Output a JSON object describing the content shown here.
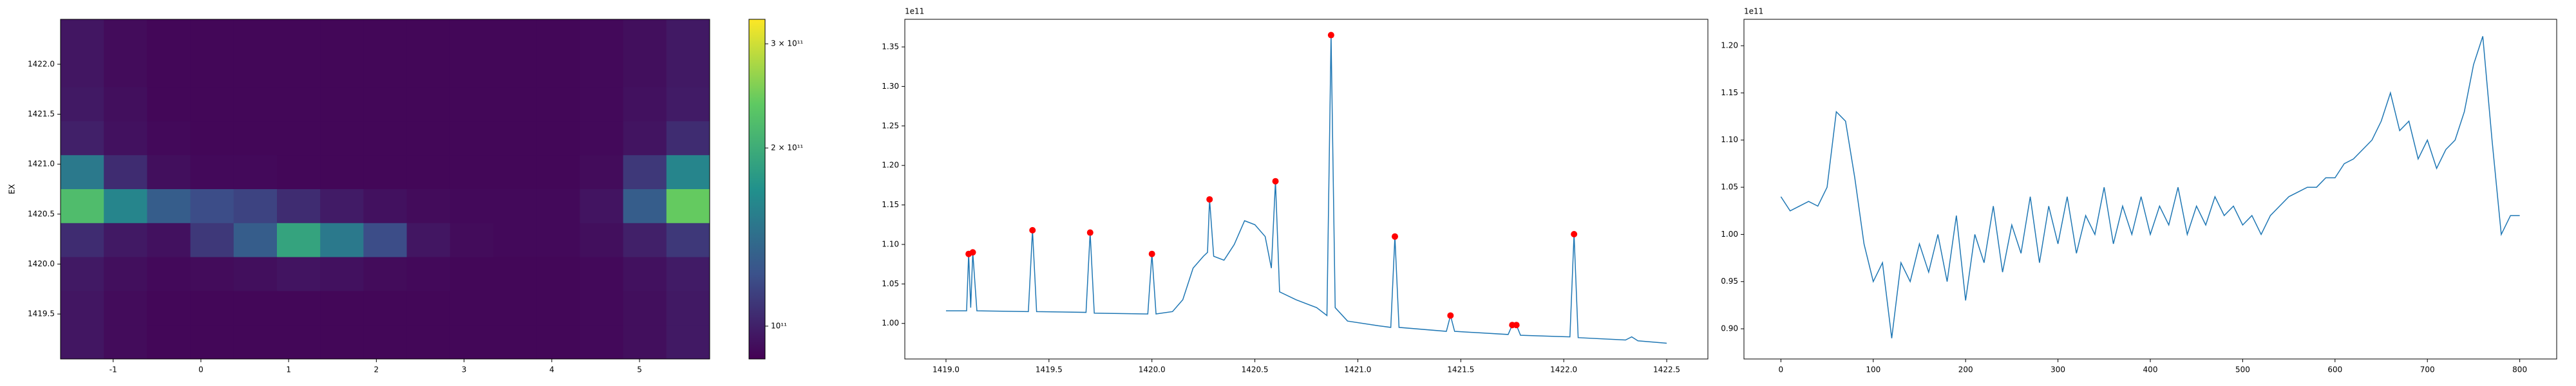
{
  "chart_data": [
    {
      "type": "heatmap",
      "ylabel": "EX",
      "xlim": [
        -1.6,
        5.8
      ],
      "ylim": [
        1419.05,
        1422.45
      ],
      "xticks": [
        -1,
        0,
        1,
        2,
        3,
        4,
        5
      ],
      "yticks": [
        1419.5,
        {
          "value": 1420.0,
          "label": "1420.0"
        },
        1420.5,
        {
          "value": 1421.0,
          "label": "1421.0"
        },
        1421.5,
        {
          "value": 1422.0,
          "label": "1422.0"
        }
      ],
      "colormap": "viridis",
      "color_scale": "log",
      "clim": [
        88000000000,
        330000000000
      ],
      "colorbar_ticks": [
        {
          "value": 100000000000,
          "label": "10¹¹"
        },
        {
          "value": 200000000000,
          "label": "2 × 10¹¹"
        },
        {
          "value": 300000000000,
          "label": "3 × 10¹¹"
        }
      ],
      "z": [
        [
          96000000000,
          92000000000,
          90000000000,
          90000000000,
          90000000000,
          90000000000,
          90000000000,
          90000000000,
          90000000000,
          90000000000,
          90000000000,
          90000000000,
          91000000000,
          93000000000,
          97000000000
        ],
        [
          96000000000,
          92000000000,
          90000000000,
          90000000000,
          90000000000,
          90000000000,
          90000000000,
          90000000000,
          90000000000,
          90000000000,
          90000000000,
          90000000000,
          91000000000,
          93000000000,
          97000000000
        ],
        [
          97000000000,
          93000000000,
          90000000000,
          90000000000,
          90000000000,
          90000000000,
          90000000000,
          90000000000,
          90000000000,
          90000000000,
          90000000000,
          90000000000,
          91000000000,
          94000000000,
          98000000000
        ],
        [
          100000000000,
          94000000000,
          91000000000,
          90000000000,
          90000000000,
          90000000000,
          90000000000,
          90000000000,
          90000000000,
          90000000000,
          90000000000,
          90000000000,
          91000000000,
          95000000000,
          105000000000
        ],
        [
          150000000000,
          105000000000,
          93000000000,
          91000000000,
          91000000000,
          90000000000,
          90000000000,
          90000000000,
          90000000000,
          90000000000,
          90000000000,
          90000000000,
          92000000000,
          110000000000,
          160000000000
        ],
        [
          220000000000,
          160000000000,
          130000000000,
          120000000000,
          115000000000,
          105000000000,
          98000000000,
          94000000000,
          92000000000,
          91000000000,
          91000000000,
          91000000000,
          95000000000,
          130000000000,
          240000000000
        ],
        [
          105000000000,
          97000000000,
          94000000000,
          110000000000,
          130000000000,
          190000000000,
          150000000000,
          120000000000,
          96000000000,
          92000000000,
          91000000000,
          91000000000,
          93000000000,
          100000000000,
          110000000000
        ],
        [
          97000000000,
          93000000000,
          91000000000,
          92000000000,
          93000000000,
          95000000000,
          94000000000,
          92000000000,
          91000000000,
          90000000000,
          90000000000,
          90000000000,
          91000000000,
          94000000000,
          98000000000
        ],
        [
          96000000000,
          92000000000,
          90000000000,
          90000000000,
          90000000000,
          90000000000,
          90000000000,
          90000000000,
          90000000000,
          90000000000,
          90000000000,
          90000000000,
          91000000000,
          93000000000,
          97000000000
        ],
        [
          96000000000,
          92000000000,
          90000000000,
          90000000000,
          90000000000,
          90000000000,
          90000000000,
          90000000000,
          90000000000,
          90000000000,
          90000000000,
          90000000000,
          91000000000,
          93000000000,
          97000000000
        ]
      ]
    },
    {
      "type": "line",
      "y_offset_label": "1e11",
      "xlim": [
        1418.8,
        1422.7
      ],
      "ylim": [
        0.955,
        1.385
      ],
      "xticks": [
        {
          "value": 1419.0,
          "label": "1419.0"
        },
        1419.5,
        {
          "value": 1420.0,
          "label": "1420.0"
        },
        1420.5,
        {
          "value": 1421.0,
          "label": "1421.0"
        },
        1421.5,
        {
          "value": 1422.0,
          "label": "1422.0"
        },
        1422.5
      ],
      "yticks": [
        {
          "value": 1.0,
          "label": "1.00"
        },
        1.05,
        {
          "value": 1.1,
          "label": "1.10"
        },
        1.15,
        {
          "value": 1.2,
          "label": "1.20"
        },
        1.25,
        {
          "value": 1.3,
          "label": "1.30"
        },
        1.35
      ],
      "series": [
        {
          "mode": "line",
          "color": "#1f77b4",
          "x": [
            1419.0,
            1419.1,
            1419.11,
            1419.12,
            1419.13,
            1419.15,
            1419.4,
            1419.42,
            1419.44,
            1419.68,
            1419.7,
            1419.72,
            1419.98,
            1420.0,
            1420.02,
            1420.1,
            1420.15,
            1420.2,
            1420.25,
            1420.27,
            1420.28,
            1420.3,
            1420.35,
            1420.4,
            1420.45,
            1420.5,
            1420.55,
            1420.58,
            1420.6,
            1420.62,
            1420.7,
            1420.8,
            1420.85,
            1420.87,
            1420.89,
            1420.95,
            1421.1,
            1421.16,
            1421.18,
            1421.2,
            1421.43,
            1421.45,
            1421.47,
            1421.73,
            1421.75,
            1421.77,
            1421.79,
            1422.03,
            1422.05,
            1422.07,
            1422.3,
            1422.33,
            1422.36,
            1422.5
          ],
          "values": [
            1.016,
            1.016,
            1.088,
            1.02,
            1.09,
            1.016,
            1.015,
            1.118,
            1.015,
            1.014,
            1.115,
            1.013,
            1.012,
            1.088,
            1.012,
            1.015,
            1.03,
            1.07,
            1.085,
            1.09,
            1.157,
            1.085,
            1.08,
            1.1,
            1.13,
            1.125,
            1.11,
            1.07,
            1.18,
            1.04,
            1.03,
            1.02,
            1.01,
            1.365,
            1.02,
            1.003,
            0.997,
            0.995,
            1.11,
            0.995,
            0.99,
            1.01,
            0.99,
            0.986,
            0.998,
            0.998,
            0.985,
            0.983,
            1.113,
            0.982,
            0.979,
            0.983,
            0.978,
            0.975
          ]
        },
        {
          "mode": "markers",
          "color": "#ff0000",
          "x": [
            1419.11,
            1419.13,
            1419.42,
            1419.7,
            1420.0,
            1420.28,
            1420.6,
            1420.87,
            1421.18,
            1421.45,
            1421.75,
            1421.77,
            1422.05
          ],
          "values": [
            1.088,
            1.09,
            1.118,
            1.115,
            1.088,
            1.157,
            1.18,
            1.365,
            1.11,
            1.01,
            0.998,
            0.998,
            1.113
          ]
        }
      ]
    },
    {
      "type": "line",
      "y_offset_label": "1e11",
      "xlim": [
        -40,
        840
      ],
      "ylim": [
        0.868,
        1.228
      ],
      "xticks": [
        0,
        100,
        200,
        300,
        400,
        500,
        600,
        700,
        800
      ],
      "yticks": [
        {
          "value": 0.9,
          "label": "0.90"
        },
        0.95,
        {
          "value": 1.0,
          "label": "1.00"
        },
        1.05,
        {
          "value": 1.1,
          "label": "1.10"
        },
        1.15,
        {
          "value": 1.2,
          "label": "1.20"
        }
      ],
      "series": [
        {
          "mode": "line",
          "color": "#1f77b4",
          "x": [
            0,
            10,
            20,
            30,
            40,
            50,
            60,
            70,
            80,
            90,
            100,
            110,
            120,
            130,
            140,
            150,
            160,
            170,
            180,
            190,
            200,
            210,
            220,
            230,
            240,
            250,
            260,
            270,
            280,
            290,
            300,
            310,
            320,
            330,
            340,
            350,
            360,
            370,
            380,
            390,
            400,
            410,
            420,
            430,
            440,
            450,
            460,
            470,
            480,
            490,
            500,
            510,
            520,
            530,
            540,
            550,
            560,
            570,
            580,
            590,
            600,
            610,
            620,
            630,
            640,
            650,
            660,
            670,
            680,
            690,
            700,
            710,
            720,
            730,
            740,
            750,
            760,
            770,
            780,
            790,
            800
          ],
          "values": [
            1.04,
            1.025,
            1.03,
            1.035,
            1.03,
            1.05,
            1.13,
            1.12,
            1.06,
            0.99,
            0.95,
            0.97,
            0.89,
            0.97,
            0.95,
            0.99,
            0.96,
            1.0,
            0.95,
            1.02,
            0.93,
            1.0,
            0.97,
            1.03,
            0.96,
            1.01,
            0.98,
            1.04,
            0.97,
            1.03,
            0.99,
            1.04,
            0.98,
            1.02,
            1.0,
            1.05,
            0.99,
            1.03,
            1.0,
            1.04,
            1.0,
            1.03,
            1.01,
            1.05,
            1.0,
            1.03,
            1.01,
            1.04,
            1.02,
            1.03,
            1.01,
            1.02,
            1.0,
            1.02,
            1.03,
            1.04,
            1.045,
            1.05,
            1.05,
            1.06,
            1.06,
            1.075,
            1.08,
            1.09,
            1.1,
            1.12,
            1.15,
            1.11,
            1.12,
            1.08,
            1.1,
            1.07,
            1.09,
            1.1,
            1.13,
            1.18,
            1.21,
            1.1,
            1.0,
            1.02,
            1.02
          ]
        }
      ]
    }
  ]
}
